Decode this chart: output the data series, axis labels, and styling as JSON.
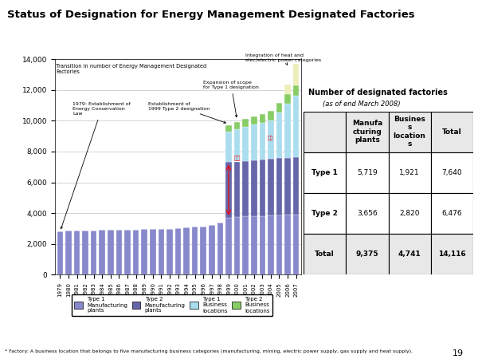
{
  "title": "Status of Designation for Energy Management Designated Factories",
  "background_color": "#ffffff",
  "years": [
    "1979",
    "1980",
    "1981",
    "1982",
    "1983",
    "1984",
    "1985",
    "1986",
    "1987",
    "1988",
    "1989",
    "1990",
    "1991",
    "1992",
    "1993",
    "1994",
    "1995",
    "1996",
    "1997",
    "1998",
    "1999",
    "2000",
    "2001",
    "2002",
    "2003",
    "2004",
    "2005",
    "2006",
    "2007"
  ],
  "type1_mfg": [
    2800,
    2850,
    2870,
    2880,
    2890,
    2900,
    2910,
    2920,
    2930,
    2940,
    2950,
    2960,
    2970,
    2980,
    3000,
    3050,
    3100,
    3150,
    3250,
    3400,
    3700,
    3750,
    3780,
    3800,
    3820,
    3840,
    3860,
    3880,
    3900
  ],
  "type2_mfg": [
    0,
    0,
    0,
    0,
    0,
    0,
    0,
    0,
    0,
    0,
    0,
    0,
    0,
    0,
    0,
    0,
    0,
    0,
    0,
    0,
    3600,
    3600,
    3620,
    3640,
    3660,
    3680,
    3700,
    3710,
    3720
  ],
  "type1_biz": [
    0,
    0,
    0,
    0,
    0,
    0,
    0,
    0,
    0,
    0,
    0,
    0,
    0,
    0,
    0,
    0,
    0,
    0,
    0,
    0,
    2000,
    2100,
    2200,
    2300,
    2400,
    2500,
    3000,
    3500,
    4000
  ],
  "type2_biz": [
    0,
    0,
    0,
    0,
    0,
    0,
    0,
    0,
    0,
    0,
    0,
    0,
    0,
    0,
    0,
    0,
    0,
    0,
    0,
    0,
    400,
    450,
    500,
    550,
    580,
    600,
    620,
    640,
    660
  ],
  "type_extra": [
    0,
    0,
    0,
    0,
    0,
    0,
    0,
    0,
    0,
    0,
    0,
    0,
    0,
    0,
    0,
    0,
    0,
    0,
    0,
    0,
    0,
    0,
    0,
    0,
    0,
    0,
    0,
    600,
    1400
  ],
  "color_type1_mfg": "#8888cc",
  "color_type2_mfg": "#6666aa",
  "color_type1_biz": "#aaddee",
  "color_type2_biz": "#88cc66",
  "color_extra": "#eeeebb",
  "ylim": [
    0,
    14000
  ],
  "yticks": [
    0,
    2000,
    4000,
    6000,
    8000,
    10000,
    12000,
    14000
  ],
  "footnote": "* Factory: A business location that belongs to five manufacturing business categories (manufacturing, mining, electric power supply, gas supply and heat supply).",
  "page_number": "19",
  "table_rows": [
    [
      "Type 1",
      "5,719",
      "1,921",
      "7,640"
    ],
    [
      "Type 2",
      "3,656",
      "2,820",
      "6,476"
    ],
    [
      "Total",
      "9,375",
      "4,741",
      "14,116"
    ]
  ],
  "col_h1": "Manufa\ncturing\nplants",
  "col_h2": "Busines\ns\nlocation\ns",
  "col_h3": "Total"
}
